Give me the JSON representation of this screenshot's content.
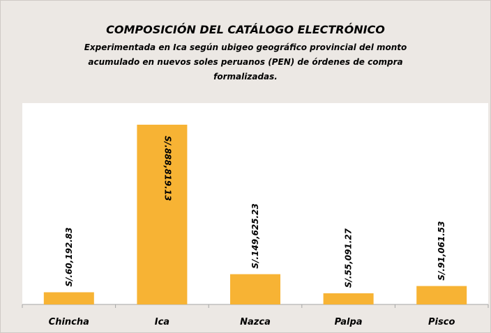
{
  "chart_data": {
    "type": "bar",
    "title": "COMPOSICIÓN DEL CATÁLOGO ELECTRÓNICO",
    "subtitle": [
      "Experimentada en Ica según ubigeo geográfico provincial del monto",
      "acumulado en nuevos soles peruanos (PEN) de órdenes de compra",
      "formalizadas."
    ],
    "categories": [
      "Chincha",
      "Ica",
      "Nazca",
      "Palpa",
      "Pisco"
    ],
    "values": [
      60192.83,
      888819.13,
      149625.23,
      55091.27,
      91061.53
    ],
    "value_labels": [
      "S/.60,192.83",
      "S/.888,819.13",
      "S/.149,625.23",
      "S/.55,091.27",
      "S/.91,061.53"
    ],
    "color": "#f7b334"
  }
}
